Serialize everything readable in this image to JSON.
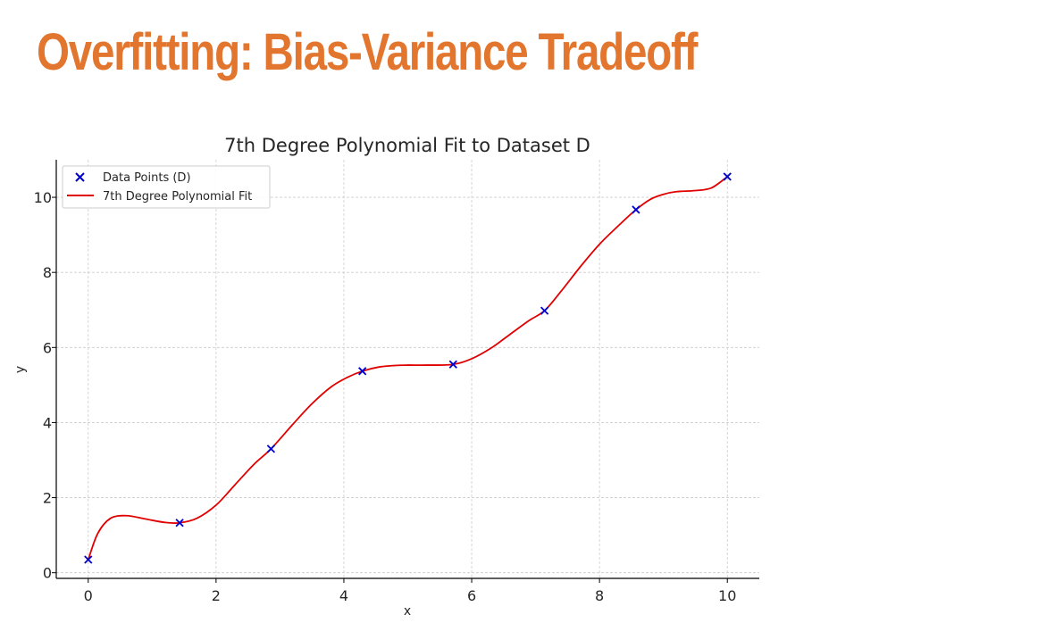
{
  "slide": {
    "title": "Overfitting: Bias-Variance Tradeoff"
  },
  "colors": {
    "title": "#E2762E",
    "points": "#0000CC",
    "fit_line": "#E00000",
    "grid": "#CCCCCC",
    "axis": "#000000"
  },
  "chart_data": {
    "type": "scatter",
    "title": "7th Degree Polynomial Fit to Dataset D",
    "xlabel": "x",
    "ylabel": "y",
    "xlim": [
      -0.5,
      10.5
    ],
    "ylim": [
      -0.15,
      11.0
    ],
    "x_ticks": [
      0,
      2,
      4,
      6,
      8,
      10
    ],
    "y_ticks": [
      0,
      2,
      4,
      6,
      8,
      10
    ],
    "grid": true,
    "legend_position": "upper-left",
    "series": [
      {
        "name": "Data Points (D)",
        "kind": "scatter",
        "marker": "x",
        "color": "#0000CC",
        "x": [
          0,
          1.43,
          2.86,
          4.29,
          5.71,
          7.14,
          8.57,
          10
        ],
        "y": [
          0.35,
          1.33,
          3.3,
          5.37,
          5.55,
          6.98,
          9.67,
          10.55
        ]
      },
      {
        "name": "7th Degree Polynomial Fit",
        "kind": "line",
        "color": "#E00000",
        "x": [
          0,
          0.15,
          0.35,
          0.6,
          0.9,
          1.2,
          1.43,
          1.7,
          2.0,
          2.3,
          2.6,
          2.86,
          3.2,
          3.5,
          3.8,
          4.05,
          4.29,
          4.55,
          4.8,
          5.0,
          5.3,
          5.71,
          6.0,
          6.3,
          6.6,
          6.9,
          7.14,
          7.4,
          7.7,
          8.0,
          8.3,
          8.57,
          8.8,
          9.0,
          9.2,
          9.5,
          9.75,
          10
        ],
        "y": [
          0.35,
          1.05,
          1.45,
          1.52,
          1.43,
          1.34,
          1.33,
          1.45,
          1.8,
          2.35,
          2.9,
          3.3,
          3.95,
          4.5,
          4.95,
          5.2,
          5.37,
          5.48,
          5.52,
          5.53,
          5.53,
          5.55,
          5.7,
          5.98,
          6.35,
          6.72,
          6.98,
          7.5,
          8.15,
          8.75,
          9.25,
          9.67,
          9.95,
          10.08,
          10.15,
          10.18,
          10.25,
          10.55
        ]
      }
    ]
  }
}
